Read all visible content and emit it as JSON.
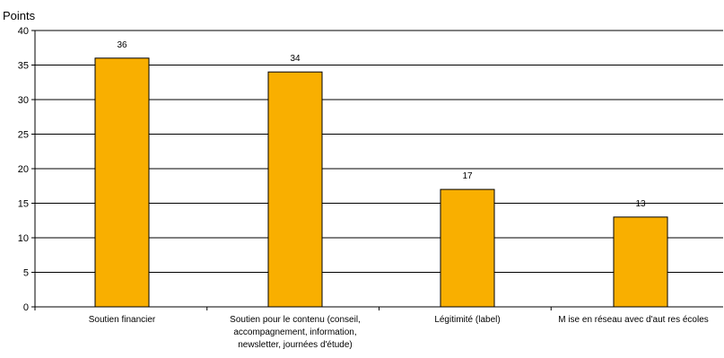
{
  "chart_data": {
    "type": "bar",
    "ylabel": "Points",
    "xlabel": "",
    "title": "",
    "ylim": [
      0,
      40
    ],
    "yticks": [
      0,
      5,
      10,
      15,
      20,
      25,
      30,
      35,
      40
    ],
    "grid": "horizontal",
    "categories": [
      [
        "Soutien financier"
      ],
      [
        "Soutien pour le contenu (conseil,",
        "accompagnement, information,",
        "newsletter, journées d'étude)"
      ],
      [
        "Légitimité (label)"
      ],
      [
        "M ise en réseau avec d'aut res écoles"
      ]
    ],
    "values": [
      36,
      34,
      17,
      13
    ],
    "data_labels": [
      "36",
      "34",
      "17",
      "13"
    ],
    "colors": {
      "bar_fill": "#F9AF00",
      "bar_stroke": "#000000",
      "grid": "#000000",
      "axis": "#000000"
    }
  }
}
